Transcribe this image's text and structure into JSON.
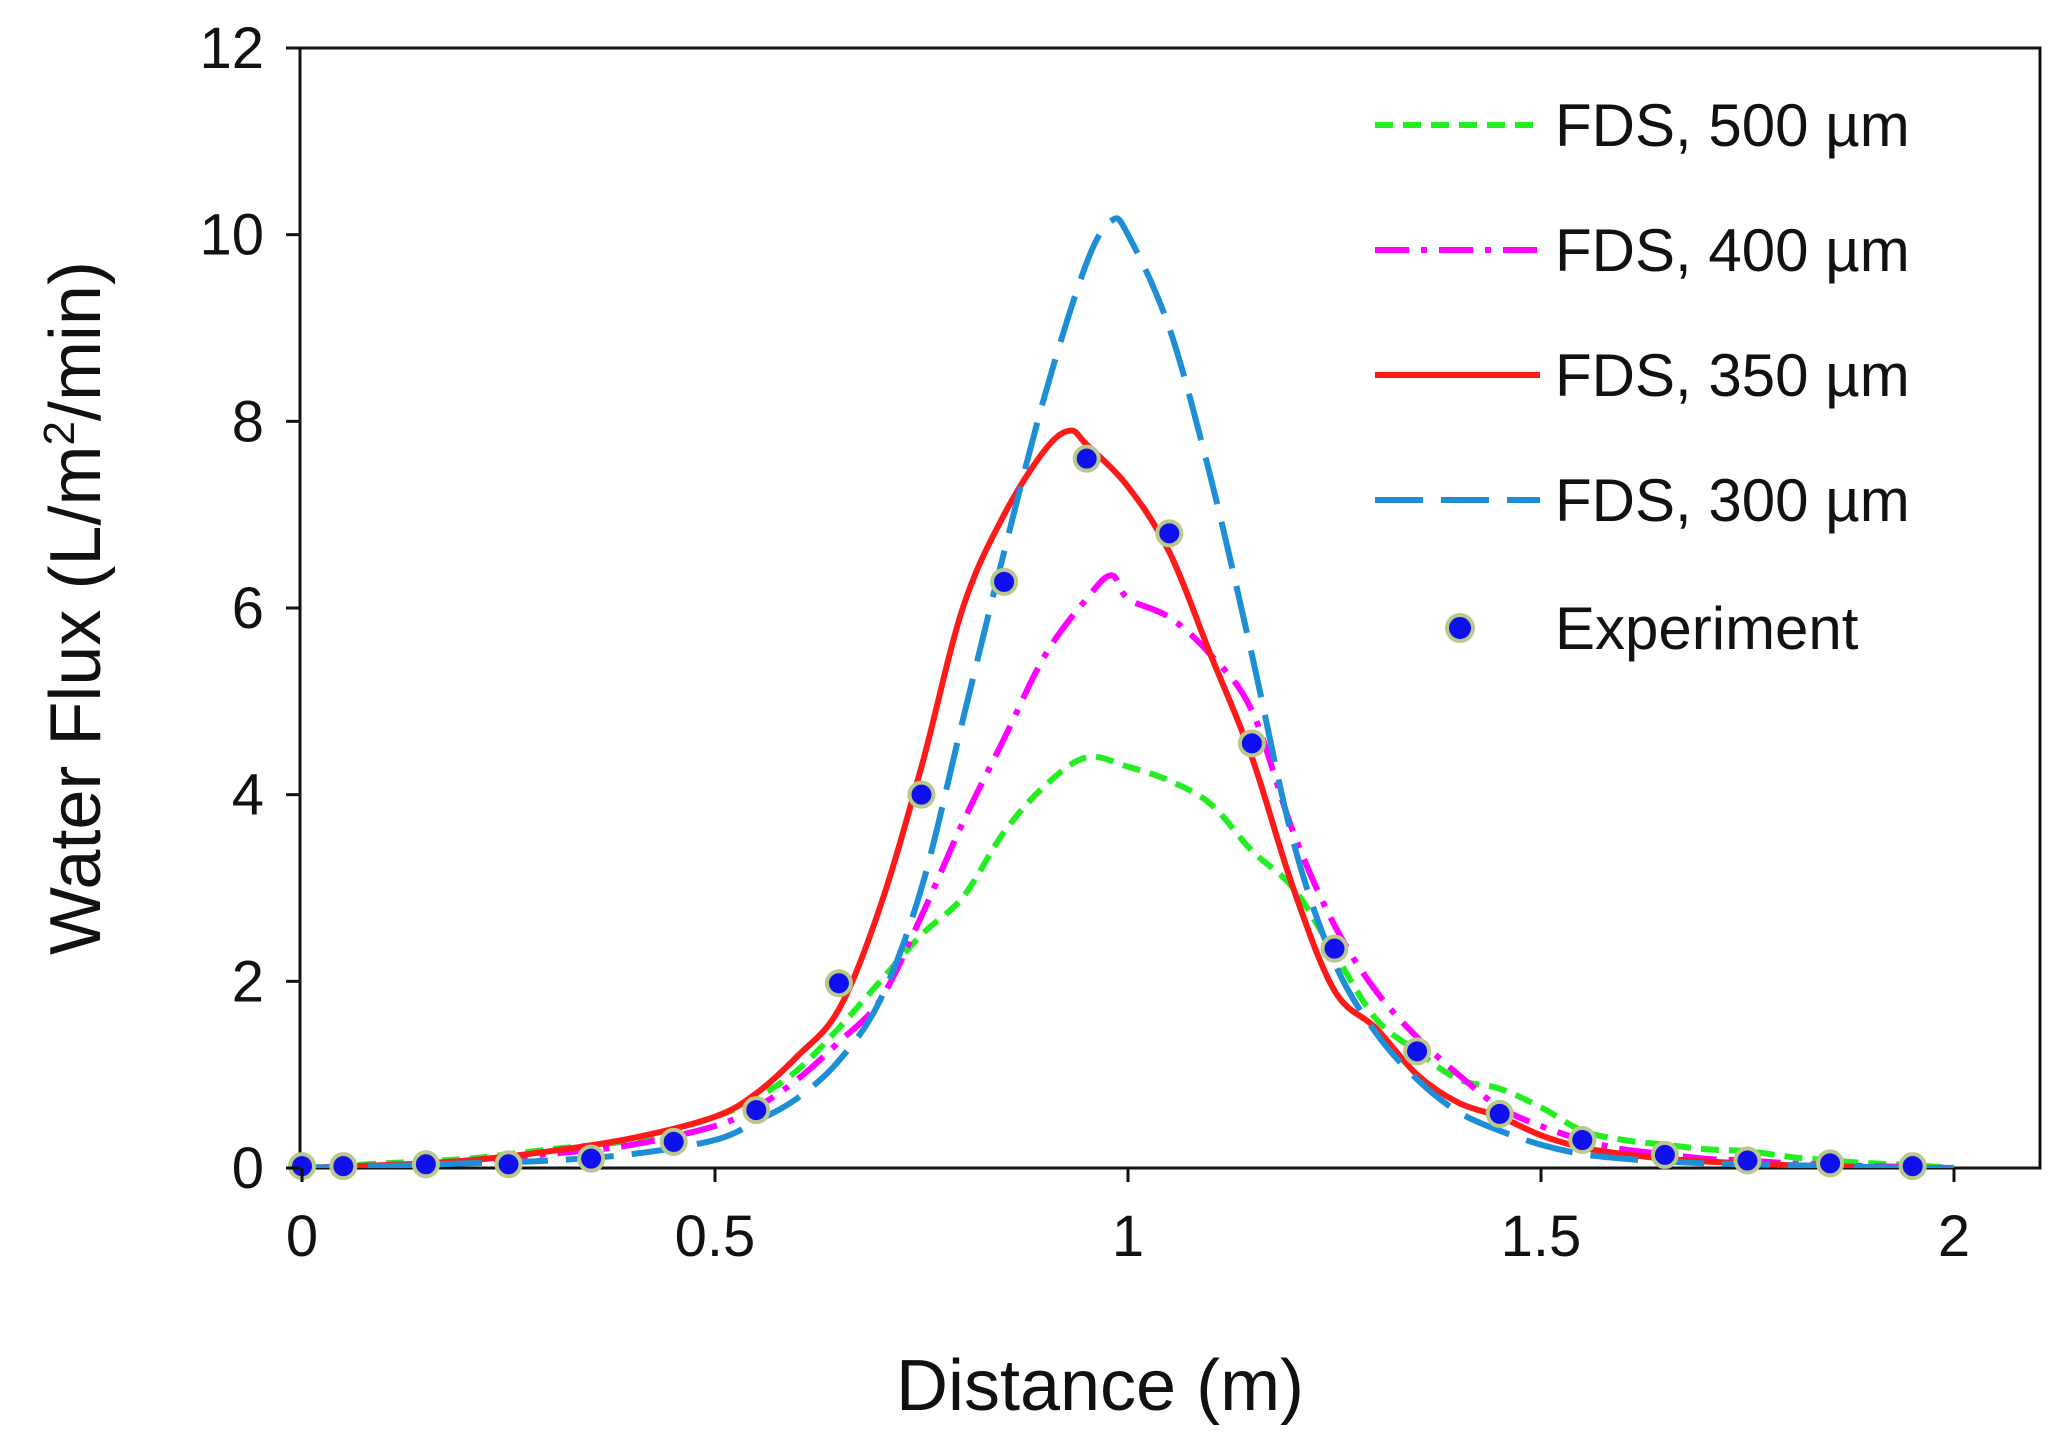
{
  "chart_data": {
    "type": "line",
    "title": "",
    "xlabel": "Distance (m)",
    "ylabel_parts": [
      "Water Flux (L/m",
      "2",
      "/min)"
    ],
    "xlim": [
      0,
      2.1
    ],
    "ylim": [
      0,
      12
    ],
    "xticks": [
      0,
      0.5,
      1,
      1.5,
      2
    ],
    "xtick_labels": [
      "0",
      "0.5",
      "1",
      "1.5",
      "2"
    ],
    "yticks": [
      0,
      2,
      4,
      6,
      8,
      10,
      12
    ],
    "ytick_labels": [
      "0",
      "2",
      "4",
      "6",
      "8",
      "10",
      "12"
    ],
    "grid": false,
    "legend_position": "top-right",
    "series": [
      {
        "name": "FDS, 500 µm",
        "color": "#22ee22",
        "style": "short-dash",
        "x": [
          0,
          0.1,
          0.2,
          0.3,
          0.4,
          0.5,
          0.55,
          0.6,
          0.65,
          0.7,
          0.75,
          0.8,
          0.85,
          0.9,
          0.95,
          1.0,
          1.05,
          1.1,
          1.15,
          1.2,
          1.25,
          1.3,
          1.35,
          1.4,
          1.45,
          1.5,
          1.55,
          1.6,
          1.65,
          1.7,
          1.75,
          1.8,
          1.85,
          1.9,
          1.95,
          2.0
        ],
        "y": [
          0.0,
          0.05,
          0.1,
          0.2,
          0.3,
          0.55,
          0.75,
          1.05,
          1.5,
          2.0,
          2.5,
          2.9,
          3.6,
          4.1,
          4.4,
          4.3,
          4.15,
          3.9,
          3.4,
          3.0,
          2.3,
          1.6,
          1.25,
          0.95,
          0.85,
          0.65,
          0.4,
          0.3,
          0.25,
          0.2,
          0.18,
          0.12,
          0.08,
          0.05,
          0.03,
          0.0
        ]
      },
      {
        "name": "FDS, 400 µm",
        "color": "#ff00ff",
        "style": "dash-dot",
        "x": [
          0,
          0.1,
          0.2,
          0.3,
          0.4,
          0.5,
          0.55,
          0.6,
          0.65,
          0.7,
          0.75,
          0.8,
          0.85,
          0.9,
          0.95,
          0.98,
          1.0,
          1.05,
          1.1,
          1.15,
          1.2,
          1.25,
          1.3,
          1.35,
          1.4,
          1.45,
          1.5,
          1.55,
          1.6,
          1.65,
          1.7,
          1.75,
          1.8,
          1.85,
          1.9,
          1.95,
          2.0
        ],
        "y": [
          0.0,
          0.03,
          0.07,
          0.15,
          0.25,
          0.45,
          0.65,
          0.95,
          1.35,
          1.8,
          2.7,
          3.7,
          4.6,
          5.5,
          6.1,
          6.35,
          6.1,
          5.9,
          5.5,
          4.9,
          3.6,
          2.6,
          1.9,
          1.4,
          1.0,
          0.65,
          0.45,
          0.3,
          0.2,
          0.15,
          0.1,
          0.08,
          0.05,
          0.03,
          0.02,
          0.01,
          0.0
        ]
      },
      {
        "name": "FDS, 350 µm",
        "color": "#ff1a1a",
        "style": "solid",
        "x": [
          0,
          0.1,
          0.2,
          0.3,
          0.4,
          0.5,
          0.55,
          0.6,
          0.65,
          0.7,
          0.75,
          0.8,
          0.85,
          0.9,
          0.93,
          0.95,
          1.0,
          1.05,
          1.1,
          1.15,
          1.2,
          1.25,
          1.3,
          1.35,
          1.4,
          1.45,
          1.5,
          1.55,
          1.6,
          1.65,
          1.7,
          1.75,
          1.8,
          1.85,
          1.9,
          1.95,
          2.0
        ],
        "y": [
          0.0,
          0.03,
          0.08,
          0.18,
          0.32,
          0.55,
          0.8,
          1.2,
          1.7,
          2.8,
          4.3,
          6.0,
          7.0,
          7.7,
          7.9,
          7.75,
          7.3,
          6.6,
          5.5,
          4.4,
          3.0,
          1.9,
          1.5,
          1.0,
          0.7,
          0.55,
          0.35,
          0.22,
          0.15,
          0.1,
          0.07,
          0.05,
          0.03,
          0.02,
          0.01,
          0.0,
          0.0
        ]
      },
      {
        "name": "FDS, 300 µm",
        "color": "#1e8fd6",
        "style": "long-dash",
        "x": [
          0,
          0.1,
          0.2,
          0.3,
          0.4,
          0.5,
          0.55,
          0.6,
          0.65,
          0.7,
          0.75,
          0.8,
          0.85,
          0.9,
          0.95,
          0.98,
          1.0,
          1.05,
          1.1,
          1.15,
          1.2,
          1.25,
          1.3,
          1.35,
          1.4,
          1.45,
          1.5,
          1.55,
          1.6,
          1.65,
          1.7,
          1.75,
          1.8,
          1.85,
          1.9,
          1.95,
          2.0
        ],
        "y": [
          0.0,
          0.02,
          0.05,
          0.08,
          0.15,
          0.3,
          0.5,
          0.75,
          1.15,
          1.8,
          3.0,
          4.8,
          6.6,
          8.3,
          9.7,
          10.15,
          10.0,
          9.0,
          7.4,
          5.5,
          3.5,
          2.2,
          1.45,
          0.95,
          0.6,
          0.4,
          0.25,
          0.15,
          0.1,
          0.07,
          0.05,
          0.04,
          0.03,
          0.02,
          0.01,
          0.0,
          0.0
        ]
      }
    ],
    "points": {
      "name": "Experiment",
      "color": "#1010ee",
      "edge_color": "#b9c98a",
      "x": [
        0.0,
        0.05,
        0.15,
        0.25,
        0.35,
        0.45,
        0.55,
        0.65,
        0.75,
        0.85,
        0.95,
        1.05,
        1.15,
        1.25,
        1.35,
        1.45,
        1.55,
        1.65,
        1.75,
        1.85,
        1.95
      ],
      "y": [
        0.02,
        0.02,
        0.04,
        0.04,
        0.1,
        0.28,
        0.62,
        1.98,
        4.0,
        6.28,
        7.6,
        6.8,
        4.55,
        2.35,
        1.25,
        0.58,
        0.3,
        0.14,
        0.08,
        0.05,
        0.02
      ]
    }
  }
}
